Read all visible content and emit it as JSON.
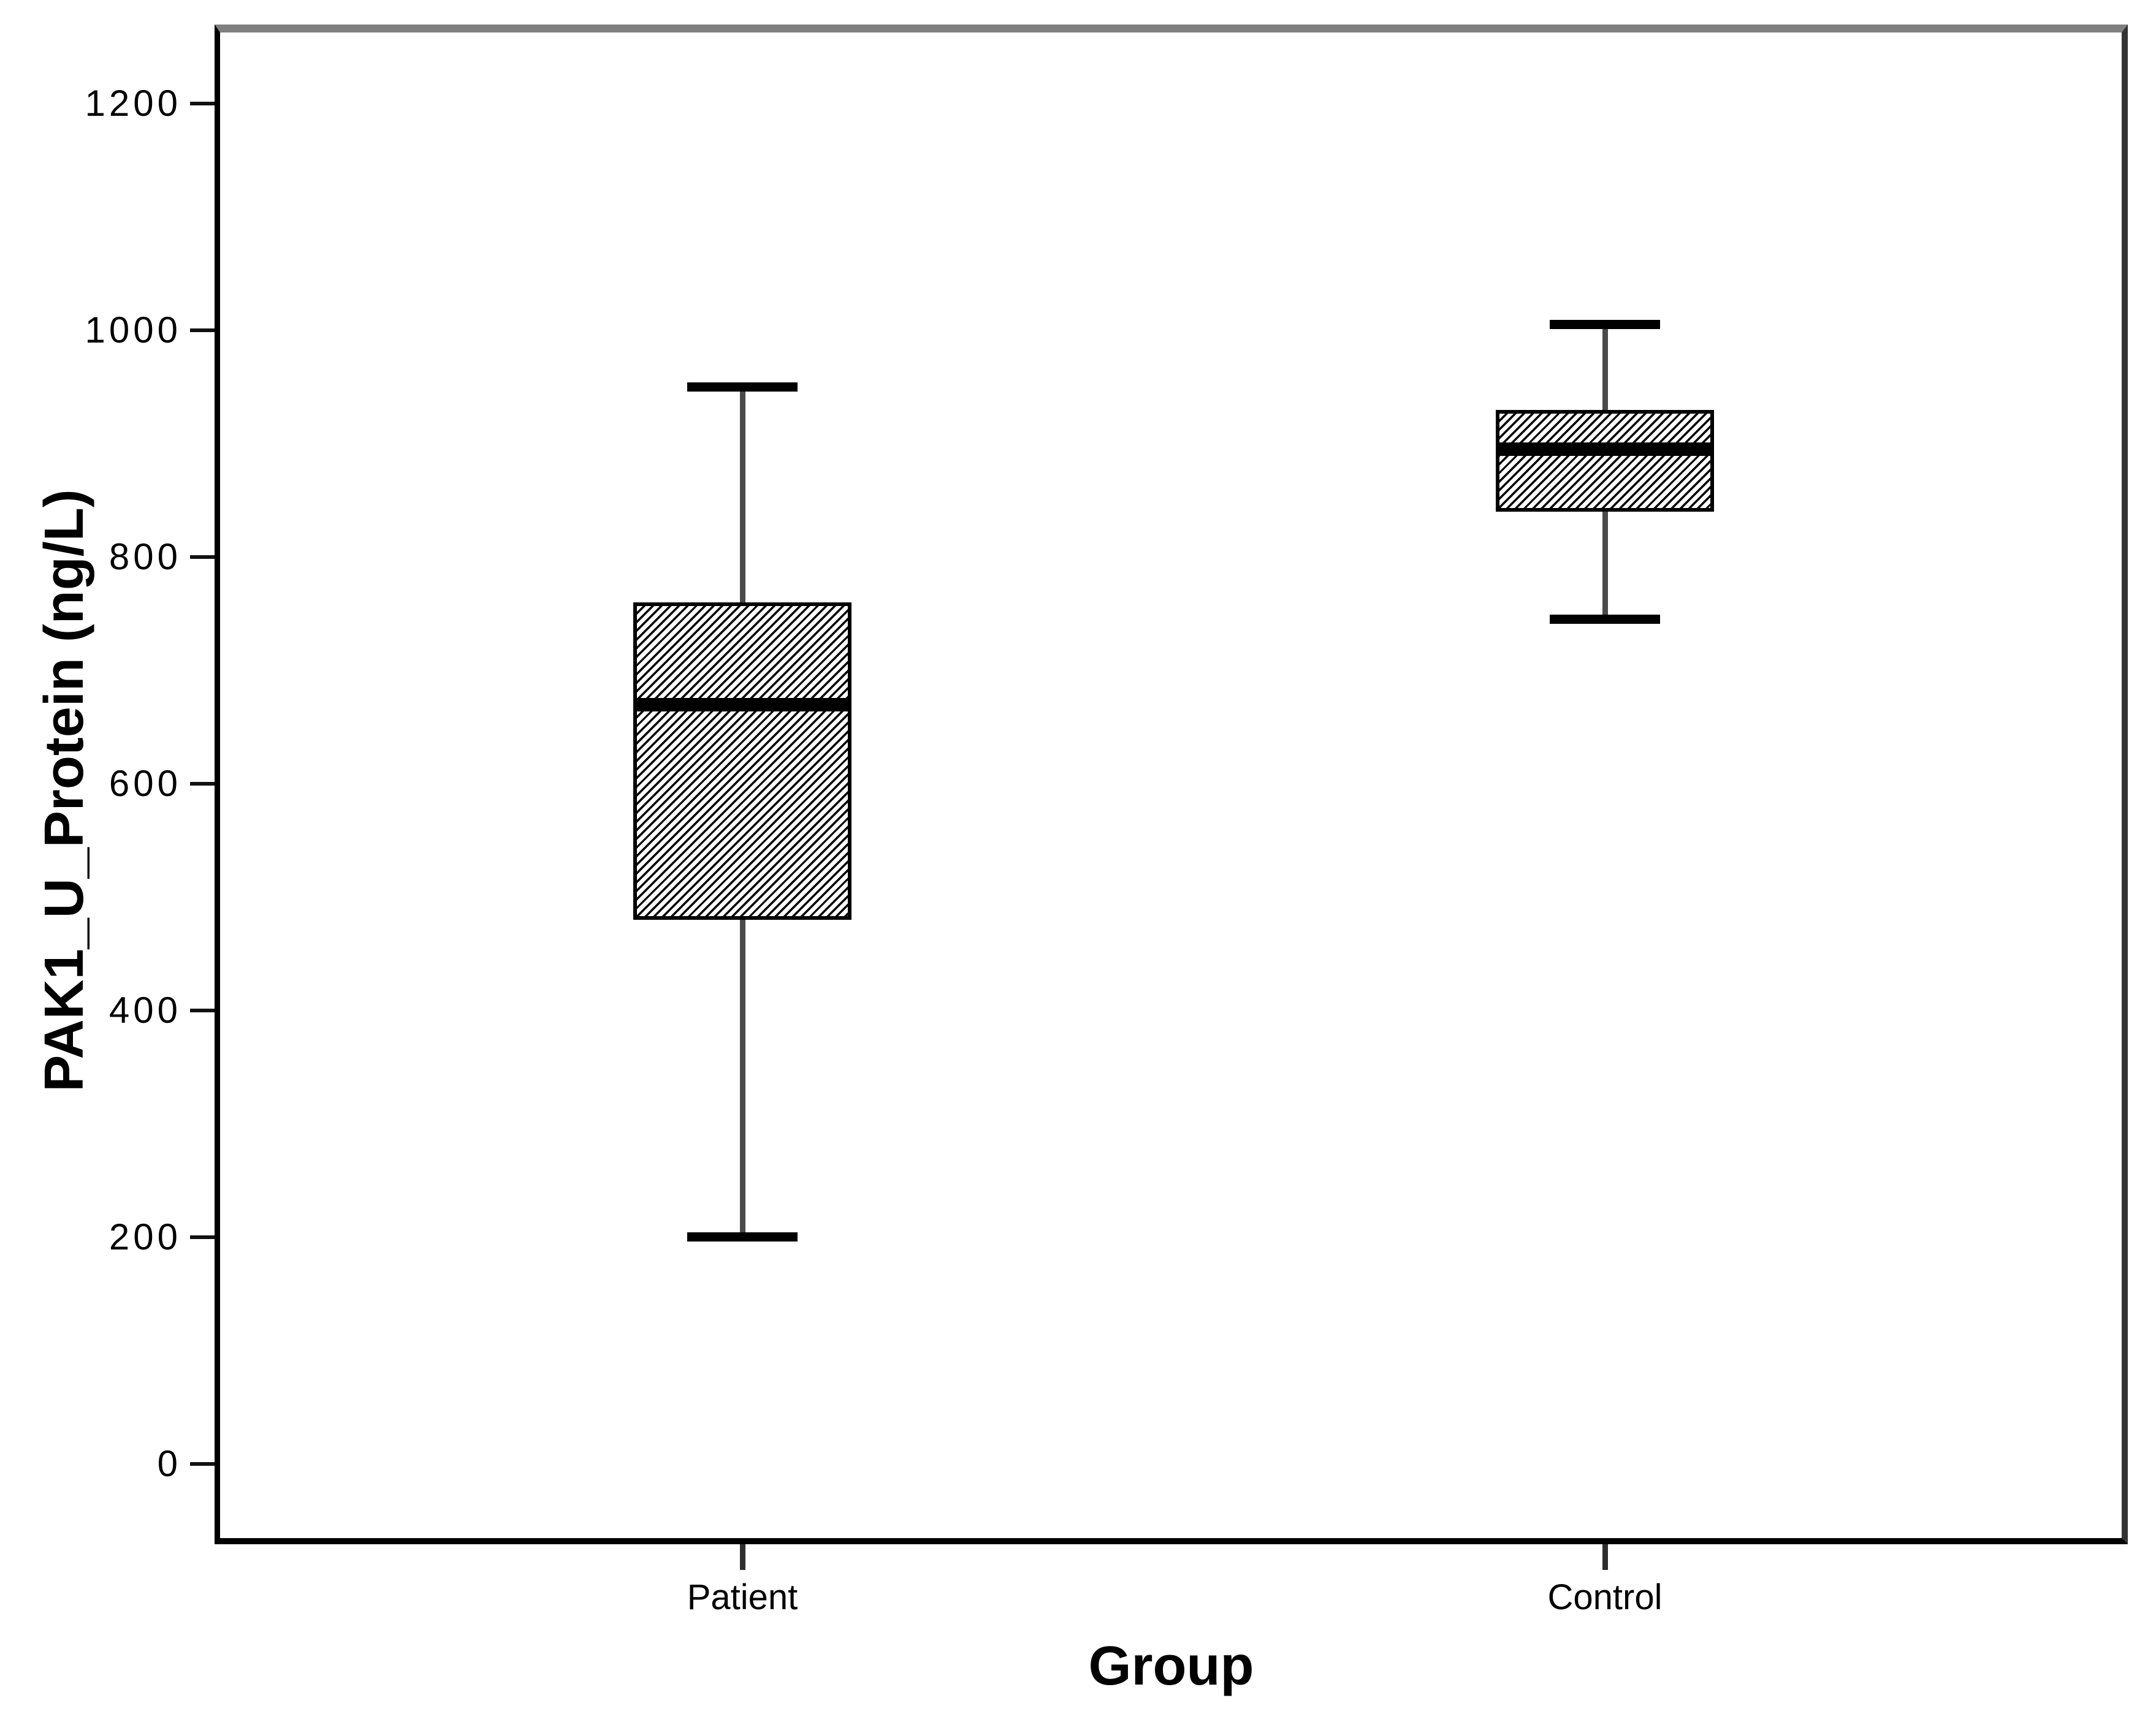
{
  "chart_data": {
    "type": "boxplot",
    "title": "",
    "xlabel": "Group",
    "ylabel": "PAK1_U_Protein (ng/L)",
    "categories": [
      "Patient",
      "Control"
    ],
    "yticks": [
      0,
      200,
      400,
      600,
      800,
      1000,
      1200
    ],
    "ylim": [
      -70,
      1270
    ],
    "grid": false,
    "legend": false,
    "box_fill": "diagonal-hatch",
    "series": [
      {
        "name": "Patient",
        "min": 200,
        "q1": 480,
        "median": 670,
        "q3": 760,
        "max": 950
      },
      {
        "name": "Control",
        "min": 745,
        "q1": 840,
        "median": 895,
        "q3": 930,
        "max": 1005
      }
    ],
    "colors": {
      "box_border": "#000000",
      "median": "#000000",
      "whisker": "#4a4a4a",
      "whisker_cap": "#000000",
      "frame_top": "#7f7f7f",
      "frame_right": "#333333",
      "axis": "#000000",
      "text": "#000000",
      "background": "#ffffff"
    }
  }
}
